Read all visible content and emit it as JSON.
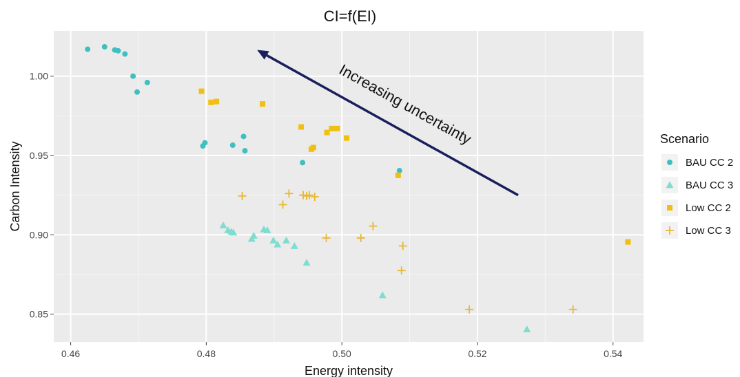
{
  "chart_data": {
    "type": "scatter",
    "title": "CI=f(EI)",
    "xlabel": "Energy intensity",
    "ylabel": "Carbon Intensity",
    "xlim": [
      0.4575,
      0.5445
    ],
    "ylim": [
      0.8325,
      1.0285
    ],
    "x_ticks": [
      {
        "value": 0.46,
        "label": "0.46"
      },
      {
        "value": 0.48,
        "label": "0.48"
      },
      {
        "value": 0.5,
        "label": "0.50"
      },
      {
        "value": 0.52,
        "label": "0.52"
      },
      {
        "value": 0.54,
        "label": "0.54"
      }
    ],
    "y_ticks": [
      {
        "value": 0.85,
        "label": "0.85"
      },
      {
        "value": 0.9,
        "label": "0.90"
      },
      {
        "value": 0.95,
        "label": "0.95"
      },
      {
        "value": 1.0,
        "label": "1.00"
      }
    ],
    "grid": true,
    "legend_title": "Scenario",
    "legend_position": "right",
    "annotation": {
      "text": "Increasing uncertainty",
      "arrow_from": [
        0.526,
        0.925
      ],
      "arrow_to": [
        0.4875,
        1.0165
      ],
      "color": "#1a1f5c"
    },
    "series": [
      {
        "name": "BAU CC 2",
        "marker": "circle",
        "color": "#3fbfbf",
        "points": [
          [
            0.4625,
            1.017
          ],
          [
            0.465,
            1.0185
          ],
          [
            0.4665,
            1.0165
          ],
          [
            0.467,
            1.016
          ],
          [
            0.468,
            1.014
          ],
          [
            0.4692,
            1.0
          ],
          [
            0.4698,
            0.99
          ],
          [
            0.4713,
            0.996
          ],
          [
            0.4795,
            0.956
          ],
          [
            0.4798,
            0.958
          ],
          [
            0.4839,
            0.9565
          ],
          [
            0.4855,
            0.962
          ],
          [
            0.4857,
            0.953
          ],
          [
            0.4942,
            0.9455
          ],
          [
            0.5085,
            0.9405
          ]
        ]
      },
      {
        "name": "BAU CC 3",
        "marker": "triangle",
        "color": "#7fddd0",
        "points": [
          [
            0.4825,
            0.906
          ],
          [
            0.4832,
            0.903
          ],
          [
            0.4837,
            0.902
          ],
          [
            0.484,
            0.9015
          ],
          [
            0.4867,
            0.8975
          ],
          [
            0.487,
            0.8995
          ],
          [
            0.4885,
            0.9035
          ],
          [
            0.489,
            0.903
          ],
          [
            0.4899,
            0.8965
          ],
          [
            0.4905,
            0.894
          ],
          [
            0.4918,
            0.8965
          ],
          [
            0.493,
            0.893
          ],
          [
            0.4948,
            0.8825
          ],
          [
            0.506,
            0.862
          ],
          [
            0.5273,
            0.8405
          ]
        ]
      },
      {
        "name": "Low CC 2",
        "marker": "square",
        "color": "#f0c010",
        "points": [
          [
            0.4793,
            0.9905
          ],
          [
            0.4807,
            0.9835
          ],
          [
            0.4815,
            0.984
          ],
          [
            0.4883,
            0.9825
          ],
          [
            0.494,
            0.968
          ],
          [
            0.4955,
            0.954
          ],
          [
            0.4958,
            0.955
          ],
          [
            0.4978,
            0.9645
          ],
          [
            0.4985,
            0.967
          ],
          [
            0.4993,
            0.967
          ],
          [
            0.5007,
            0.961
          ],
          [
            0.5083,
            0.9375
          ],
          [
            0.5422,
            0.8955
          ]
        ]
      },
      {
        "name": "Low CC 3",
        "marker": "plus",
        "color": "#e8b830",
        "points": [
          [
            0.4853,
            0.9245
          ],
          [
            0.4913,
            0.919
          ],
          [
            0.4922,
            0.926
          ],
          [
            0.4943,
            0.925
          ],
          [
            0.4948,
            0.9245
          ],
          [
            0.4952,
            0.925
          ],
          [
            0.496,
            0.924
          ],
          [
            0.4977,
            0.898
          ],
          [
            0.5028,
            0.898
          ],
          [
            0.5046,
            0.9055
          ],
          [
            0.5088,
            0.8775
          ],
          [
            0.509,
            0.893
          ],
          [
            0.5188,
            0.853
          ],
          [
            0.5341,
            0.853
          ]
        ]
      }
    ]
  }
}
